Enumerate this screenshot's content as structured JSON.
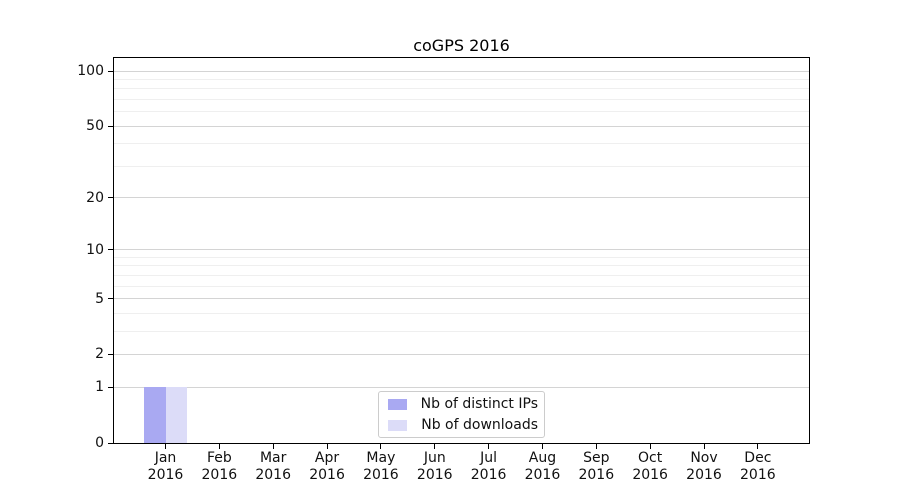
{
  "chart_data": {
    "type": "bar",
    "title": "coGPS 2016",
    "scale": "log1p",
    "ylim": [
      0,
      118
    ],
    "y_major_ticks": [
      0,
      1,
      2,
      5,
      10,
      20,
      50,
      100
    ],
    "y_minor_ticks": [
      3,
      4,
      6,
      7,
      8,
      9,
      30,
      40,
      60,
      70,
      80,
      90
    ],
    "grid": true,
    "legend_position": "lower center",
    "categories": [
      {
        "month": "Jan",
        "year": "2016"
      },
      {
        "month": "Feb",
        "year": "2016"
      },
      {
        "month": "Mar",
        "year": "2016"
      },
      {
        "month": "Apr",
        "year": "2016"
      },
      {
        "month": "May",
        "year": "2016"
      },
      {
        "month": "Jun",
        "year": "2016"
      },
      {
        "month": "Jul",
        "year": "2016"
      },
      {
        "month": "Aug",
        "year": "2016"
      },
      {
        "month": "Sep",
        "year": "2016"
      },
      {
        "month": "Oct",
        "year": "2016"
      },
      {
        "month": "Nov",
        "year": "2016"
      },
      {
        "month": "Dec",
        "year": "2016"
      }
    ],
    "series": [
      {
        "name": "Nb of distinct IPs",
        "color": "#a9a9f2",
        "values": [
          1,
          0,
          0,
          0,
          0,
          0,
          0,
          0,
          0,
          0,
          0,
          0
        ]
      },
      {
        "name": "Nb of downloads",
        "color": "#dcdcf8",
        "values": [
          1,
          0,
          0,
          0,
          0,
          0,
          0,
          0,
          0,
          0,
          0,
          0
        ]
      }
    ],
    "colors": {
      "grid_major": "#d4d4d4",
      "grid_minor": "#efefef",
      "spine": "#000000",
      "legend_border": "#cccccc",
      "background": "#ffffff"
    }
  }
}
